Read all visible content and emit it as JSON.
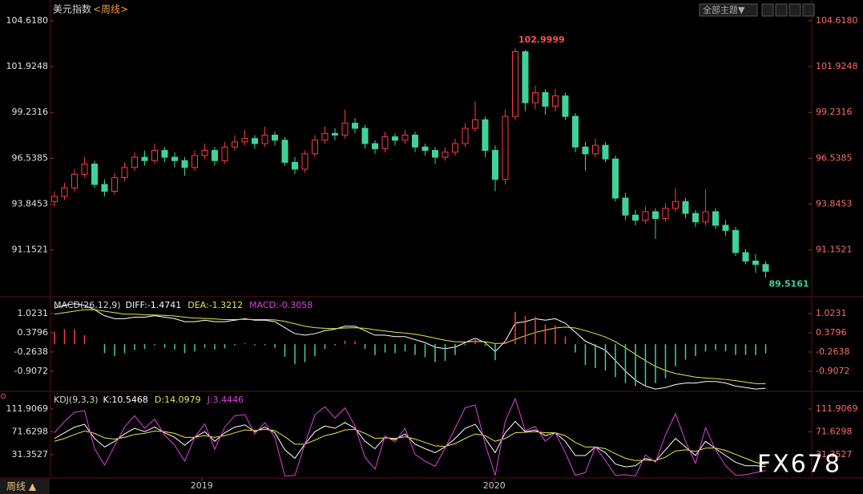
{
  "header": {
    "title": "美元指数",
    "period": "<周线>",
    "theme_button": "全部主题▼"
  },
  "chart_data": [
    {
      "type": "candlestick",
      "up_color": "#ff3c3c",
      "down_color": "#3fd29a",
      "ylim": [
        88.5,
        104.8
      ],
      "yticks": [
        {
          "value": 104.618,
          "label": "104.6180"
        },
        101.9248,
        99.2316,
        96.5385,
        93.8453,
        91.1521
      ],
      "xticks": [
        {
          "value": 14.7,
          "label": "2019"
        },
        {
          "value": 43.9,
          "label": "2020"
        }
      ],
      "candles": [
        [
          94.0,
          94.6,
          93.7,
          94.3
        ],
        [
          94.3,
          95.1,
          94.1,
          94.8
        ],
        [
          94.8,
          95.9,
          94.6,
          95.6
        ],
        [
          95.6,
          96.6,
          95.4,
          96.2
        ],
        [
          96.2,
          96.4,
          94.8,
          95.0
        ],
        [
          95.0,
          95.3,
          94.3,
          94.6
        ],
        [
          94.6,
          95.7,
          94.4,
          95.4
        ],
        [
          95.4,
          96.3,
          95.2,
          96.0
        ],
        [
          96.0,
          96.9,
          95.8,
          96.6
        ],
        [
          96.6,
          97.0,
          96.1,
          96.4
        ],
        [
          96.4,
          97.4,
          96.2,
          97.0
        ],
        [
          97.0,
          97.2,
          96.3,
          96.6
        ],
        [
          96.6,
          96.9,
          96.0,
          96.4
        ],
        [
          96.4,
          96.6,
          95.5,
          96.0
        ],
        [
          96.0,
          97.0,
          95.8,
          96.7
        ],
        [
          96.7,
          97.4,
          96.5,
          97.0
        ],
        [
          97.0,
          97.2,
          96.1,
          96.4
        ],
        [
          96.4,
          97.5,
          96.2,
          97.2
        ],
        [
          97.2,
          97.9,
          97.0,
          97.5
        ],
        [
          97.5,
          98.2,
          97.3,
          97.7
        ],
        [
          97.7,
          97.9,
          97.1,
          97.4
        ],
        [
          97.4,
          98.4,
          97.2,
          97.9
        ],
        [
          97.9,
          98.1,
          97.3,
          97.6
        ],
        [
          97.6,
          97.8,
          96.1,
          96.3
        ],
        [
          96.3,
          96.6,
          95.6,
          95.9
        ],
        [
          95.9,
          97.0,
          95.7,
          96.8
        ],
        [
          96.8,
          97.9,
          96.6,
          97.6
        ],
        [
          97.6,
          98.4,
          97.4,
          98.0
        ],
        [
          98.0,
          98.3,
          97.6,
          97.9
        ],
        [
          97.9,
          99.4,
          97.7,
          98.6
        ],
        [
          98.6,
          98.9,
          98.0,
          98.3
        ],
        [
          98.3,
          98.5,
          97.1,
          97.4
        ],
        [
          97.4,
          97.6,
          96.8,
          97.1
        ],
        [
          97.1,
          98.1,
          96.9,
          97.8
        ],
        [
          97.8,
          98.0,
          97.3,
          97.6
        ],
        [
          97.6,
          98.2,
          97.4,
          97.9
        ],
        [
          97.9,
          98.1,
          96.9,
          97.2
        ],
        [
          97.2,
          97.4,
          96.7,
          97.0
        ],
        [
          97.0,
          97.2,
          96.2,
          96.6
        ],
        [
          96.6,
          97.2,
          96.4,
          96.9
        ],
        [
          96.9,
          97.7,
          96.7,
          97.4
        ],
        [
          97.4,
          98.6,
          97.2,
          98.3
        ],
        [
          98.3,
          99.9,
          98.1,
          98.8
        ],
        [
          98.8,
          99.0,
          96.6,
          97.0
        ],
        [
          97.0,
          97.3,
          94.6,
          95.3
        ],
        [
          95.3,
          99.4,
          95.0,
          99.0
        ],
        [
          99.0,
          102.9999,
          98.8,
          102.8
        ],
        [
          102.8,
          102.9,
          99.3,
          99.8
        ],
        [
          99.8,
          100.8,
          99.4,
          100.4
        ],
        [
          100.4,
          100.6,
          99.1,
          99.6
        ],
        [
          99.6,
          100.6,
          99.3,
          100.2
        ],
        [
          100.2,
          100.4,
          98.8,
          99.0
        ],
        [
          99.0,
          99.2,
          96.9,
          97.2
        ],
        [
          97.2,
          97.5,
          95.8,
          96.8
        ],
        [
          96.8,
          97.7,
          96.6,
          97.3
        ],
        [
          97.3,
          97.5,
          96.3,
          96.5
        ],
        [
          96.5,
          96.7,
          94.0,
          94.2
        ],
        [
          94.2,
          94.5,
          92.9,
          93.2
        ],
        [
          93.2,
          93.5,
          92.6,
          92.9
        ],
        [
          92.9,
          93.7,
          92.7,
          93.4
        ],
        [
          93.4,
          93.6,
          91.8,
          93.0
        ],
        [
          93.0,
          93.9,
          92.8,
          93.6
        ],
        [
          93.6,
          94.8,
          93.4,
          94.0
        ],
        [
          94.0,
          94.2,
          93.0,
          93.3
        ],
        [
          93.3,
          93.5,
          92.5,
          92.8
        ],
        [
          92.8,
          94.7,
          92.6,
          93.4
        ],
        [
          93.4,
          93.6,
          92.4,
          92.6
        ],
        [
          92.6,
          92.9,
          92.0,
          92.3
        ],
        [
          92.3,
          92.5,
          90.8,
          91.0
        ],
        [
          91.0,
          91.2,
          90.3,
          90.5
        ],
        [
          90.5,
          90.9,
          89.8,
          90.3
        ],
        [
          90.3,
          90.5,
          89.5161,
          89.9
        ]
      ]
    },
    {
      "type": "macd",
      "title": "MACD(26,12,9)",
      "ylim": [
        -1.55,
        1.53
      ],
      "yticks": [
        1.0231,
        0.3796,
        -0.2638,
        -0.9072
      ],
      "up_color": "#ff3c3c",
      "down_color": "#3fd29a",
      "series": [
        {
          "name": "DIFF",
          "label": "DIFF:-1.4741",
          "color": "#ffffff",
          "values": [
            1.2,
            1.3,
            1.35,
            1.3,
            1.15,
            0.95,
            0.85,
            0.85,
            0.9,
            0.9,
            0.95,
            0.9,
            0.85,
            0.75,
            0.75,
            0.8,
            0.75,
            0.75,
            0.8,
            0.85,
            0.8,
            0.8,
            0.75,
            0.55,
            0.35,
            0.3,
            0.35,
            0.45,
            0.5,
            0.6,
            0.6,
            0.45,
            0.3,
            0.3,
            0.25,
            0.25,
            0.15,
            0.05,
            -0.1,
            -0.15,
            -0.1,
            0.05,
            0.2,
            0.05,
            -0.25,
            0.1,
            0.7,
            0.75,
            0.85,
            0.8,
            0.85,
            0.7,
            0.4,
            0.1,
            -0.05,
            -0.2,
            -0.55,
            -0.9,
            -1.2,
            -1.4,
            -1.5,
            -1.45,
            -1.35,
            -1.3,
            -1.3,
            -1.25,
            -1.25,
            -1.3,
            -1.4,
            -1.45,
            -1.5,
            -1.4741
          ]
        },
        {
          "name": "DEA",
          "label": "DEA:-1.3212",
          "color": "#e6e64a",
          "values": [
            1.0,
            1.05,
            1.1,
            1.15,
            1.15,
            1.1,
            1.05,
            1.0,
            1.0,
            0.98,
            0.97,
            0.96,
            0.94,
            0.9,
            0.87,
            0.86,
            0.84,
            0.82,
            0.82,
            0.83,
            0.82,
            0.82,
            0.81,
            0.76,
            0.68,
            0.6,
            0.55,
            0.53,
            0.52,
            0.54,
            0.55,
            0.53,
            0.48,
            0.44,
            0.4,
            0.37,
            0.33,
            0.27,
            0.2,
            0.13,
            0.08,
            0.07,
            0.09,
            0.08,
            0.02,
            0.03,
            0.16,
            0.28,
            0.39,
            0.47,
            0.54,
            0.57,
            0.54,
            0.45,
            0.35,
            0.24,
            0.08,
            -0.12,
            -0.34,
            -0.55,
            -0.74,
            -0.88,
            -0.98,
            -1.04,
            -1.1,
            -1.13,
            -1.15,
            -1.18,
            -1.22,
            -1.27,
            -1.32,
            -1.3212
          ]
        },
        {
          "name": "MACD",
          "label": "MACD:-0.3058",
          "color": "#e040e0",
          "bars": true,
          "values": [
            0.4,
            0.5,
            0.5,
            0.3,
            0,
            -0.3,
            -0.4,
            -0.3,
            -0.2,
            -0.16,
            -0.04,
            -0.12,
            -0.18,
            -0.3,
            -0.24,
            -0.12,
            -0.18,
            -0.14,
            -0.04,
            0.04,
            -0.04,
            -0.04,
            -0.12,
            -0.42,
            -0.66,
            -0.6,
            -0.4,
            -0.16,
            -0.04,
            0.12,
            0.1,
            -0.16,
            -0.36,
            -0.28,
            -0.3,
            -0.24,
            -0.36,
            -0.44,
            -0.6,
            -0.56,
            -0.36,
            -0.04,
            0.22,
            -0.06,
            -0.54,
            0.14,
            1.08,
            0.94,
            0.92,
            0.66,
            0.62,
            0.26,
            -0.28,
            -0.7,
            -0.8,
            -0.88,
            -1.1,
            -1.3,
            -1.4,
            -1.4,
            -1.3,
            -1.14,
            -0.74,
            -0.52,
            -0.4,
            -0.24,
            -0.2,
            -0.24,
            -0.36,
            -0.36,
            -0.36,
            -0.3058
          ]
        }
      ]
    },
    {
      "type": "kdj",
      "title": "KDJ(9,3,3)",
      "ylim": [
        -9.6,
        140.2
      ],
      "yticks": [
        111.9069,
        71.6298,
        31.3527
      ],
      "series": [
        {
          "name": "K",
          "label": "K:10.5468",
          "color": "#ffffff",
          "values": [
            60,
            70,
            80,
            85,
            60,
            45,
            55,
            68,
            78,
            72,
            80,
            70,
            62,
            48,
            62,
            72,
            55,
            70,
            80,
            84,
            72,
            80,
            70,
            40,
            25,
            50,
            72,
            82,
            78,
            88,
            78,
            55,
            42,
            62,
            58,
            68,
            50,
            42,
            35,
            45,
            60,
            78,
            85,
            60,
            35,
            70,
            90,
            72,
            75,
            65,
            70,
            55,
            30,
            30,
            45,
            35,
            15,
            10,
            12,
            25,
            20,
            40,
            60,
            45,
            30,
            55,
            42,
            30,
            18,
            12,
            12,
            10.5468
          ]
        },
        {
          "name": "D",
          "label": "D:14.0979",
          "color": "#e6e64a",
          "values": [
            55,
            60,
            67,
            73,
            69,
            61,
            59,
            62,
            67,
            69,
            73,
            72,
            69,
            62,
            62,
            65,
            62,
            65,
            70,
            75,
            74,
            76,
            74,
            63,
            50,
            50,
            57,
            65,
            69,
            75,
            76,
            69,
            60,
            61,
            60,
            63,
            59,
            53,
            47,
            46,
            51,
            60,
            68,
            65,
            55,
            60,
            70,
            71,
            72,
            70,
            70,
            65,
            53,
            45,
            45,
            42,
            33,
            25,
            21,
            22,
            21,
            27,
            38,
            40,
            37,
            43,
            43,
            39,
            32,
            25,
            18,
            14.0979
          ]
        },
        {
          "name": "J",
          "label": "J:3.4446",
          "color": "#e040e0",
          "values": [
            70,
            90,
            106,
            109,
            42,
            13,
            47,
            80,
            100,
            78,
            94,
            66,
            48,
            20,
            62,
            86,
            41,
            80,
            100,
            102,
            68,
            88,
            62,
            -6,
            -5,
            50,
            102,
            116,
            96,
            114,
            82,
            27,
            6,
            64,
            54,
            78,
            32,
            20,
            11,
            43,
            78,
            114,
            119,
            50,
            -5,
            90,
            130,
            74,
            81,
            55,
            70,
            35,
            -5,
            0,
            45,
            21,
            -5,
            -4,
            -6,
            31,
            18,
            66,
            104,
            55,
            16,
            79,
            40,
            12,
            -5,
            -4,
            0,
            3.4446
          ]
        }
      ]
    }
  ],
  "footer": {
    "period": "周线 ▲"
  },
  "watermark": "FX678"
}
